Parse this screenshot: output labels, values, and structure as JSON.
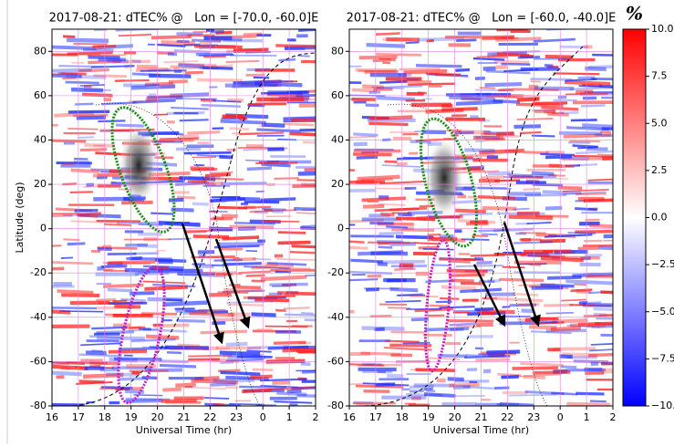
{
  "chart_data": [
    {
      "type": "heatmap",
      "title": "2017-08-21: dTEC% @   Lon = [-70.0, -60.0]E",
      "xlabel": "Universal Time (hr)",
      "ylabel": "Latitude (deg)",
      "xlim": [
        16,
        26
      ],
      "xticks": [
        16,
        17,
        18,
        19,
        20,
        21,
        22,
        23,
        {
          "value": 24,
          "label": "0"
        },
        {
          "value": 25,
          "label": "1"
        },
        {
          "value": 26,
          "label": "2"
        }
      ],
      "ylim": [
        -80,
        90
      ],
      "yticks": [
        -80,
        -60,
        -40,
        -20,
        0,
        20,
        40,
        60,
        80
      ],
      "grid": true
    },
    {
      "type": "heatmap",
      "title": "2017-08-21: dTEC% @   Lon = [-60.0, -40.0]E",
      "xlabel": "Universal Time (hr)",
      "xlim": [
        16,
        26
      ],
      "xticks": [
        16,
        17,
        18,
        19,
        20,
        21,
        22,
        23,
        {
          "value": 24,
          "label": "0"
        },
        {
          "value": 25,
          "label": "1"
        },
        {
          "value": 26,
          "label": "2"
        }
      ],
      "ylim": [
        -80,
        90
      ],
      "yticks": [
        -80,
        -60,
        -40,
        -20,
        0,
        20,
        40,
        60,
        80
      ],
      "grid": true
    },
    {
      "type": "colorbar",
      "title": "%",
      "ylim": [
        -10,
        10
      ],
      "yticks": [
        {
          "value": 10,
          "label": "10.0"
        },
        {
          "value": 7.5,
          "label": "7.5"
        },
        {
          "value": 5,
          "label": "5.0"
        },
        {
          "value": 2.5,
          "label": "2.5"
        },
        {
          "value": 0,
          "label": "0.0"
        },
        {
          "value": -2.5,
          "label": "−2.5"
        },
        {
          "value": -5,
          "label": "−5.0"
        },
        {
          "value": -7.5,
          "label": "−7.5"
        },
        {
          "value": -10,
          "label": "−10.0"
        }
      ],
      "colors": [
        "#0000ff",
        "#ffffff",
        "#ff0000"
      ]
    }
  ]
}
